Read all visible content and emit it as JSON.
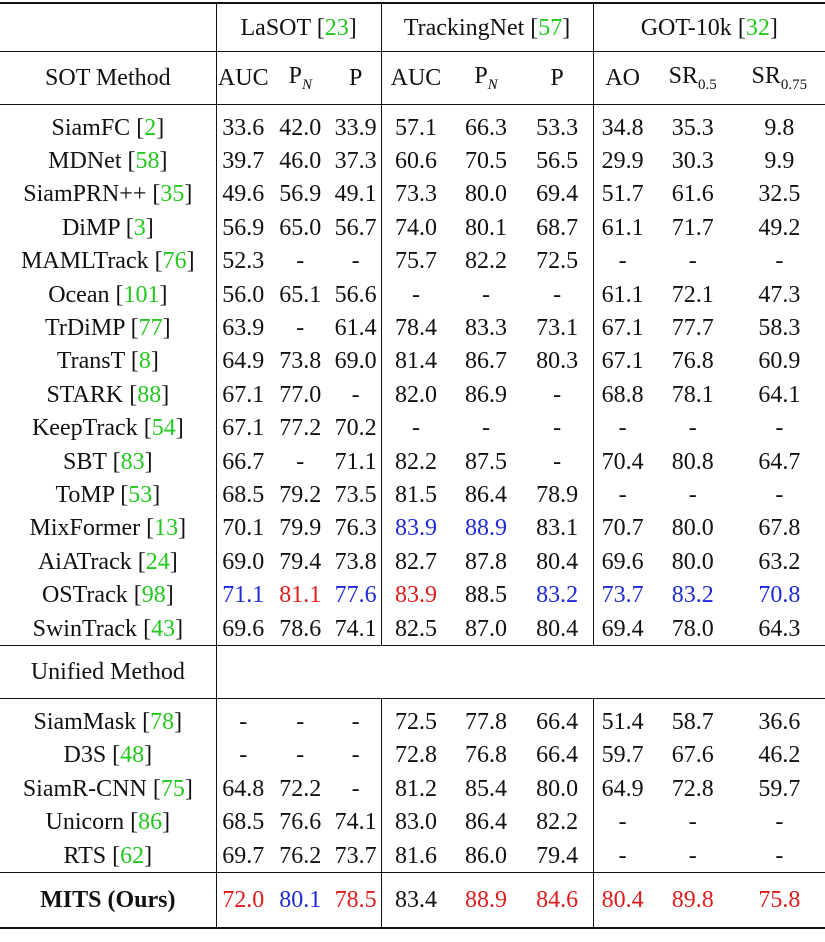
{
  "datasets": [
    {
      "name": "LaSOT",
      "ref": "23"
    },
    {
      "name": "TrackingNet",
      "ref": "57"
    },
    {
      "name": "GOT-10k",
      "ref": "32"
    }
  ],
  "headers": {
    "sot_method": "SOT Method",
    "lasot": {
      "auc": "AUC",
      "pn_main": "P",
      "pn_sub": "N",
      "p": "P"
    },
    "trackingnet": {
      "auc": "AUC",
      "pn_main": "P",
      "pn_sub": "N",
      "p": "P"
    },
    "got10k": {
      "ao": "AO",
      "sr05_main": "SR",
      "sr05_sub": "0.5",
      "sr075_main": "SR",
      "sr075_sub": "0.75"
    }
  },
  "sot_rows": [
    {
      "name": "SiamFC",
      "ref": "2",
      "values": [
        "33.6",
        "42.0",
        "33.9",
        "57.1",
        "66.3",
        "53.3",
        "34.8",
        "35.3",
        "9.8"
      ],
      "colors": [
        "",
        "",
        "",
        "",
        "",
        "",
        "",
        "",
        ""
      ]
    },
    {
      "name": "MDNet",
      "ref": "58",
      "values": [
        "39.7",
        "46.0",
        "37.3",
        "60.6",
        "70.5",
        "56.5",
        "29.9",
        "30.3",
        "9.9"
      ],
      "colors": [
        "",
        "",
        "",
        "",
        "",
        "",
        "",
        "",
        ""
      ]
    },
    {
      "name": "SiamPRN++",
      "ref": "35",
      "values": [
        "49.6",
        "56.9",
        "49.1",
        "73.3",
        "80.0",
        "69.4",
        "51.7",
        "61.6",
        "32.5"
      ],
      "colors": [
        "",
        "",
        "",
        "",
        "",
        "",
        "",
        "",
        ""
      ]
    },
    {
      "name": "DiMP",
      "ref": "3",
      "values": [
        "56.9",
        "65.0",
        "56.7",
        "74.0",
        "80.1",
        "68.7",
        "61.1",
        "71.7",
        "49.2"
      ],
      "colors": [
        "",
        "",
        "",
        "",
        "",
        "",
        "",
        "",
        ""
      ]
    },
    {
      "name": "MAMLTrack",
      "ref": "76",
      "values": [
        "52.3",
        "-",
        "-",
        "75.7",
        "82.2",
        "72.5",
        "-",
        "-",
        "-"
      ],
      "colors": [
        "",
        "",
        "",
        "",
        "",
        "",
        "",
        "",
        ""
      ]
    },
    {
      "name": "Ocean",
      "ref": "101",
      "values": [
        "56.0",
        "65.1",
        "56.6",
        "-",
        "-",
        "-",
        "61.1",
        "72.1",
        "47.3"
      ],
      "colors": [
        "",
        "",
        "",
        "",
        "",
        "",
        "",
        "",
        ""
      ]
    },
    {
      "name": "TrDiMP",
      "ref": "77",
      "values": [
        "63.9",
        "-",
        "61.4",
        "78.4",
        "83.3",
        "73.1",
        "67.1",
        "77.7",
        "58.3"
      ],
      "colors": [
        "",
        "",
        "",
        "",
        "",
        "",
        "",
        "",
        ""
      ]
    },
    {
      "name": "TransT",
      "ref": "8",
      "values": [
        "64.9",
        "73.8",
        "69.0",
        "81.4",
        "86.7",
        "80.3",
        "67.1",
        "76.8",
        "60.9"
      ],
      "colors": [
        "",
        "",
        "",
        "",
        "",
        "",
        "",
        "",
        ""
      ]
    },
    {
      "name": "STARK",
      "ref": "88",
      "values": [
        "67.1",
        "77.0",
        "-",
        "82.0",
        "86.9",
        "-",
        "68.8",
        "78.1",
        "64.1"
      ],
      "colors": [
        "",
        "",
        "",
        "",
        "",
        "",
        "",
        "",
        ""
      ]
    },
    {
      "name": "KeepTrack",
      "ref": "54",
      "values": [
        "67.1",
        "77.2",
        "70.2",
        "-",
        "-",
        "-",
        "-",
        "-",
        "-"
      ],
      "colors": [
        "",
        "",
        "",
        "",
        "",
        "",
        "",
        "",
        ""
      ]
    },
    {
      "name": "SBT",
      "ref": "83",
      "values": [
        "66.7",
        "-",
        "71.1",
        "82.2",
        "87.5",
        "-",
        "70.4",
        "80.8",
        "64.7"
      ],
      "colors": [
        "",
        "",
        "",
        "",
        "",
        "",
        "",
        "",
        ""
      ]
    },
    {
      "name": "ToMP",
      "ref": "53",
      "values": [
        "68.5",
        "79.2",
        "73.5",
        "81.5",
        "86.4",
        "78.9",
        "-",
        "-",
        "-"
      ],
      "colors": [
        "",
        "",
        "",
        "",
        "",
        "",
        "",
        "",
        ""
      ]
    },
    {
      "name": "MixFormer",
      "ref": "13",
      "values": [
        "70.1",
        "79.9",
        "76.3",
        "83.9",
        "88.9",
        "83.1",
        "70.7",
        "80.0",
        "67.8"
      ],
      "colors": [
        "",
        "",
        "",
        "blue",
        "blue",
        "",
        "",
        "",
        ""
      ]
    },
    {
      "name": "AiATrack",
      "ref": "24",
      "values": [
        "69.0",
        "79.4",
        "73.8",
        "82.7",
        "87.8",
        "80.4",
        "69.6",
        "80.0",
        "63.2"
      ],
      "colors": [
        "",
        "",
        "",
        "",
        "",
        "",
        "",
        "",
        ""
      ]
    },
    {
      "name": "OSTrack",
      "ref": "98",
      "values": [
        "71.1",
        "81.1",
        "77.6",
        "83.9",
        "88.5",
        "83.2",
        "73.7",
        "83.2",
        "70.8"
      ],
      "colors": [
        "blue",
        "red",
        "blue",
        "red",
        "",
        "blue",
        "blue",
        "blue",
        "blue"
      ]
    },
    {
      "name": "SwinTrack",
      "ref": "43",
      "values": [
        "69.6",
        "78.6",
        "74.1",
        "82.5",
        "87.0",
        "80.4",
        "69.4",
        "78.0",
        "64.3"
      ],
      "colors": [
        "",
        "",
        "",
        "",
        "",
        "",
        "",
        "",
        ""
      ]
    }
  ],
  "unified_section_label": "Unified Method",
  "unified_rows": [
    {
      "name": "SiamMask",
      "ref": "78",
      "values": [
        "-",
        "-",
        "-",
        "72.5",
        "77.8",
        "66.4",
        "51.4",
        "58.7",
        "36.6"
      ],
      "colors": [
        "",
        "",
        "",
        "",
        "",
        "",
        "",
        "",
        ""
      ]
    },
    {
      "name": "D3S",
      "ref": "48",
      "values": [
        "-",
        "-",
        "-",
        "72.8",
        "76.8",
        "66.4",
        "59.7",
        "67.6",
        "46.2"
      ],
      "colors": [
        "",
        "",
        "",
        "",
        "",
        "",
        "",
        "",
        ""
      ]
    },
    {
      "name": "SiamR-CNN",
      "ref": "75",
      "values": [
        "64.8",
        "72.2",
        "-",
        "81.2",
        "85.4",
        "80.0",
        "64.9",
        "72.8",
        "59.7"
      ],
      "colors": [
        "",
        "",
        "",
        "",
        "",
        "",
        "",
        "",
        ""
      ]
    },
    {
      "name": "Unicorn",
      "ref": "86",
      "values": [
        "68.5",
        "76.6",
        "74.1",
        "83.0",
        "86.4",
        "82.2",
        "-",
        "-",
        "-"
      ],
      "colors": [
        "",
        "",
        "",
        "",
        "",
        "",
        "",
        "",
        ""
      ]
    },
    {
      "name": "RTS",
      "ref": "62",
      "values": [
        "69.7",
        "76.2",
        "73.7",
        "81.6",
        "86.0",
        "79.4",
        "-",
        "-",
        "-"
      ],
      "colors": [
        "",
        "",
        "",
        "",
        "",
        "",
        "",
        "",
        ""
      ]
    }
  ],
  "ours": {
    "name": "MITS (Ours)",
    "values": [
      "72.0",
      "80.1",
      "78.5",
      "83.4",
      "88.9",
      "84.6",
      "80.4",
      "89.8",
      "75.8"
    ],
    "colors": [
      "red",
      "blue",
      "red",
      "",
      "red",
      "red",
      "red",
      "red",
      "red"
    ]
  }
}
